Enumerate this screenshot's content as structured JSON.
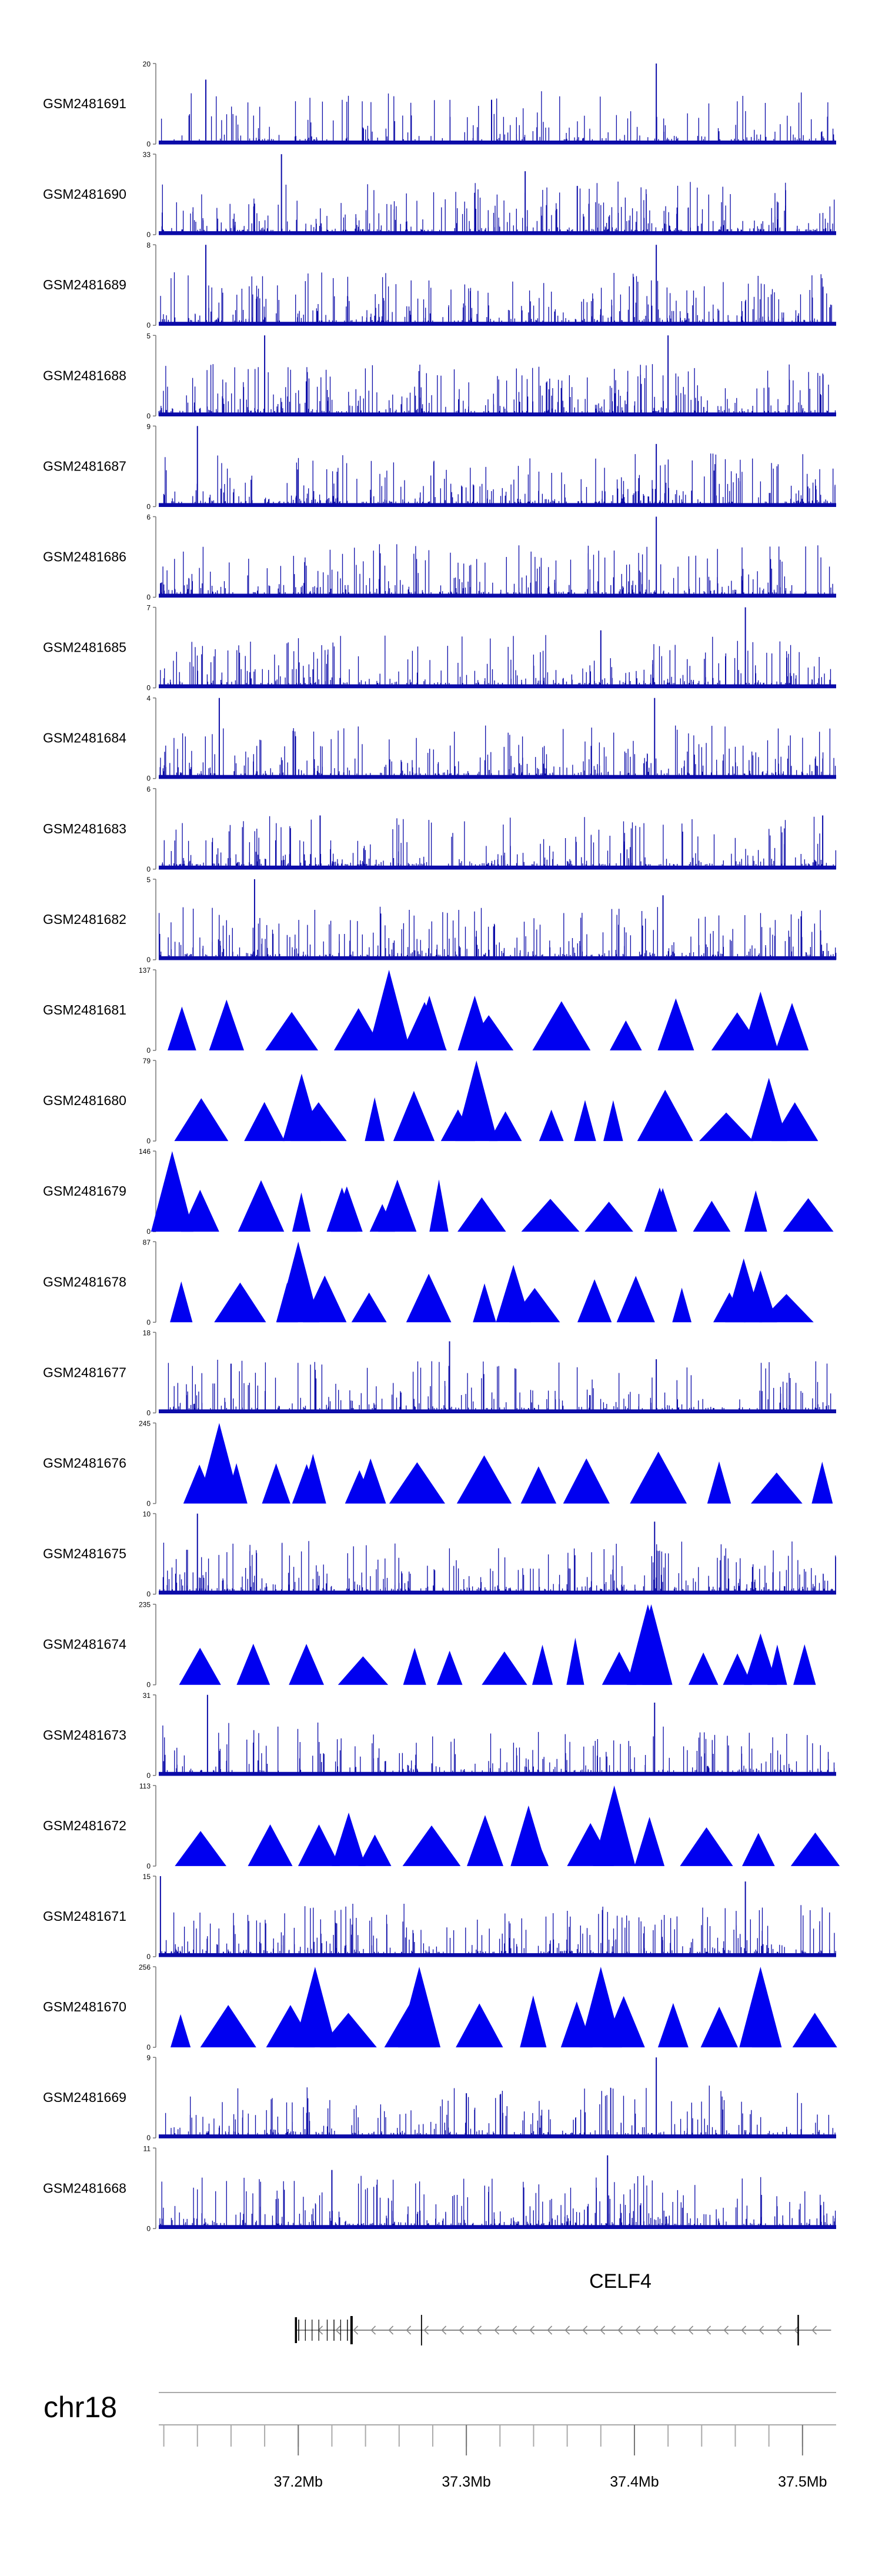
{
  "chart_data": {
    "type": "genome-coverage-tracks",
    "chromosome": "chr18",
    "xlim": [
      37.117,
      37.52
    ],
    "axis_ticks": [
      {
        "label": "37.2Mb",
        "value": 37.2
      },
      {
        "label": "37.3Mb",
        "value": 37.3
      },
      {
        "label": "37.4Mb",
        "value": 37.4
      },
      {
        "label": "37.5Mb",
        "value": 37.5
      }
    ],
    "gene": {
      "name": "CELF4",
      "strand": "-",
      "start": 37.198,
      "end": 37.517
    },
    "tracks": [
      {
        "name": "GSM2481691",
        "ymin": 0,
        "ymax": 20,
        "style": "bars",
        "density": 0.12,
        "peaks": [
          [
            37.145,
            16
          ],
          [
            37.315,
            11
          ],
          [
            37.413,
            20
          ]
        ]
      },
      {
        "name": "GSM2481690",
        "ymin": 0,
        "ymax": 33,
        "style": "bars",
        "density": 0.45,
        "peaks": [
          [
            37.19,
            33
          ],
          [
            37.335,
            26
          ],
          [
            37.366,
            20
          ]
        ]
      },
      {
        "name": "GSM2481689",
        "ymin": 0,
        "ymax": 8,
        "style": "bars",
        "density": 0.4,
        "peaks": [
          [
            37.145,
            8
          ],
          [
            37.413,
            8
          ]
        ]
      },
      {
        "name": "GSM2481688",
        "ymin": 0,
        "ymax": 5,
        "style": "bars",
        "density": 0.45,
        "peaks": [
          [
            37.18,
            5
          ],
          [
            37.42,
            5
          ]
        ]
      },
      {
        "name": "GSM2481687",
        "ymin": 0,
        "ymax": 9,
        "style": "bars",
        "density": 0.4,
        "peaks": [
          [
            37.14,
            9
          ],
          [
            37.413,
            7
          ]
        ]
      },
      {
        "name": "GSM2481686",
        "ymin": 0,
        "ymax": 6,
        "style": "bars",
        "density": 0.4,
        "peaks": [
          [
            37.413,
            6
          ]
        ]
      },
      {
        "name": "GSM2481685",
        "ymin": 0,
        "ymax": 7,
        "style": "bars",
        "density": 0.35,
        "peaks": [
          [
            37.466,
            7
          ],
          [
            37.38,
            5
          ]
        ]
      },
      {
        "name": "GSM2481684",
        "ymin": 0,
        "ymax": 4,
        "style": "bars",
        "density": 0.4,
        "peaks": [
          [
            37.153,
            4
          ],
          [
            37.412,
            4
          ]
        ]
      },
      {
        "name": "GSM2481683",
        "ymin": 0,
        "ymax": 6,
        "style": "bars",
        "density": 0.4,
        "peaks": [
          [
            37.213,
            4
          ],
          [
            37.512,
            4
          ]
        ]
      },
      {
        "name": "GSM2481682",
        "ymin": 0,
        "ymax": 5,
        "style": "bars",
        "density": 0.4,
        "peaks": [
          [
            37.174,
            5
          ],
          [
            37.417,
            4
          ]
        ]
      },
      {
        "name": "GSM2481681",
        "ymin": 0,
        "ymax": 137,
        "style": "triangles",
        "peaks": [
          [
            37.254,
            137
          ],
          [
            37.278,
            93
          ],
          [
            37.305,
            93
          ],
          [
            37.475,
            100
          ]
        ]
      },
      {
        "name": "GSM2481680",
        "ymin": 0,
        "ymax": 79,
        "style": "triangles",
        "peaks": [
          [
            37.306,
            79
          ],
          [
            37.48,
            62
          ],
          [
            37.202,
            66
          ]
        ]
      },
      {
        "name": "GSM2481679",
        "ymin": 0,
        "ymax": 146,
        "style": "triangles",
        "peaks": [
          [
            37.125,
            146
          ],
          [
            37.226,
            80
          ],
          [
            37.415,
            80
          ],
          [
            37.25,
            50
          ]
        ]
      },
      {
        "name": "GSM2481678",
        "ymin": 0,
        "ymax": 87,
        "style": "triangles",
        "peaks": [
          [
            37.2,
            87
          ],
          [
            37.328,
            62
          ],
          [
            37.465,
            69
          ],
          [
            37.475,
            56
          ]
        ]
      },
      {
        "name": "GSM2481677",
        "ymin": 0,
        "ymax": 18,
        "style": "bars",
        "density": 0.22,
        "peaks": [
          [
            37.29,
            16
          ],
          [
            37.413,
            12
          ],
          [
            37.16,
            11
          ]
        ]
      },
      {
        "name": "GSM2481676",
        "ymin": 0,
        "ymax": 245,
        "style": "triangles",
        "peaks": [
          [
            37.153,
            245
          ],
          [
            37.243,
            137
          ],
          [
            37.205,
            120
          ]
        ]
      },
      {
        "name": "GSM2481675",
        "ymin": 0,
        "ymax": 10,
        "style": "bars",
        "density": 0.45,
        "peaks": [
          [
            37.14,
            10
          ],
          [
            37.412,
            9
          ]
        ]
      },
      {
        "name": "GSM2481674",
        "ymin": 0,
        "ymax": 235,
        "style": "triangles",
        "peaks": [
          [
            37.408,
            235
          ],
          [
            37.41,
            235
          ],
          [
            37.475,
            150
          ]
        ]
      },
      {
        "name": "GSM2481673",
        "ymin": 0,
        "ymax": 31,
        "style": "bars",
        "density": 0.18,
        "peaks": [
          [
            37.146,
            31
          ],
          [
            37.412,
            28
          ],
          [
            37.27,
            8
          ]
        ]
      },
      {
        "name": "GSM2481672",
        "ymin": 0,
        "ymax": 113,
        "style": "triangles",
        "peaks": [
          [
            37.388,
            113
          ],
          [
            37.337,
            85
          ],
          [
            37.23,
            75
          ]
        ]
      },
      {
        "name": "GSM2481671",
        "ymin": 0,
        "ymax": 15,
        "style": "bars",
        "density": 0.4,
        "peaks": [
          [
            37.118,
            15
          ],
          [
            37.466,
            14
          ]
        ]
      },
      {
        "name": "GSM2481670",
        "ymin": 0,
        "ymax": 256,
        "style": "triangles",
        "peaks": [
          [
            37.21,
            256
          ],
          [
            37.272,
            256
          ],
          [
            37.38,
            256
          ],
          [
            37.475,
            256
          ]
        ]
      },
      {
        "name": "GSM2481669",
        "ymin": 0,
        "ymax": 9,
        "style": "bars",
        "density": 0.25,
        "peaks": [
          [
            37.413,
            9
          ],
          [
            37.3,
            5
          ]
        ]
      },
      {
        "name": "GSM2481668",
        "ymin": 0,
        "ymax": 11,
        "style": "bars",
        "density": 0.45,
        "peaks": [
          [
            37.384,
            10
          ],
          [
            37.22,
            8
          ]
        ]
      }
    ]
  }
}
